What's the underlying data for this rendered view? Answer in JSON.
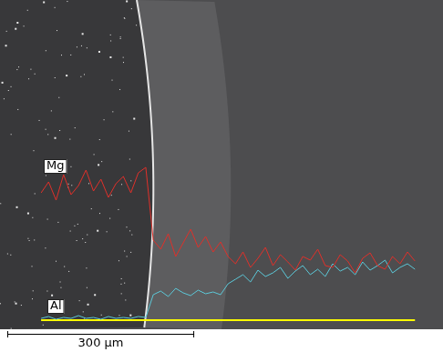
{
  "chart_data": {
    "type": "line",
    "x": [
      66,
      78,
      90,
      102,
      114,
      126,
      138,
      150,
      162,
      174,
      186,
      198,
      210,
      222,
      234,
      246,
      258,
      270,
      282,
      294,
      306,
      318,
      330,
      342,
      354,
      366,
      378,
      390,
      402,
      414,
      426,
      438,
      450,
      462,
      474,
      486,
      498,
      510,
      522,
      534,
      546,
      558,
      570,
      582,
      594,
      606,
      618,
      630,
      642,
      654,
      666
    ],
    "series": [
      {
        "name": "Mg",
        "color": "#e0302a",
        "values": [
          140,
          152,
          132,
          160,
          138,
          148,
          165,
          142,
          155,
          135,
          150,
          158,
          140,
          162,
          168,
          88,
          78,
          95,
          70,
          85,
          100,
          80,
          92,
          75,
          86,
          70,
          62,
          75,
          58,
          68,
          80,
          60,
          72,
          64,
          55,
          70,
          66,
          78,
          60,
          58,
          72,
          65,
          52,
          68,
          74,
          60,
          56,
          70,
          62,
          75,
          65
        ]
      },
      {
        "name": "Al",
        "color": "#5cc8d8",
        "values": [
          2,
          4,
          1,
          3,
          2,
          5,
          2,
          3,
          1,
          4,
          2,
          3,
          2,
          4,
          3,
          28,
          32,
          26,
          35,
          30,
          27,
          33,
          29,
          31,
          28,
          40,
          45,
          50,
          42,
          55,
          48,
          52,
          58,
          46,
          54,
          60,
          50,
          56,
          48,
          62,
          54,
          58,
          50,
          64,
          55,
          60,
          66,
          52,
          58,
          62,
          56
        ]
      }
    ],
    "xlim": [
      0,
      711
    ],
    "ylim": [
      0,
      352
    ],
    "tick_labels": false,
    "grid": false,
    "scale_bar": {
      "value": 300,
      "label": "300 μm"
    }
  }
}
